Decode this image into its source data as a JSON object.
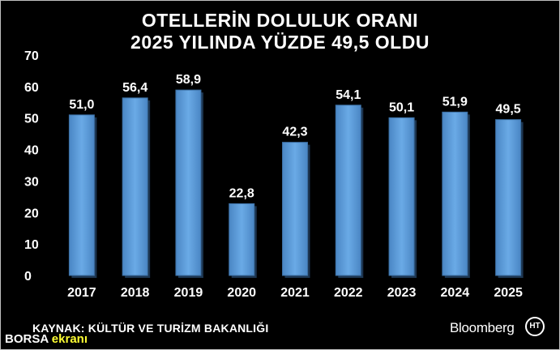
{
  "title_line1": "OTELLERİN DOLULUK ORANI",
  "title_line2": "2025 YILINDA YÜZDE 49,5 OLDU",
  "source": "KAYNAK: KÜLTÜR VE TURİZM BAKANLIĞI",
  "brand": "Bloomberg",
  "brand_logo": "HT",
  "watermark_part1": "BORSA",
  "watermark_part2": "ekranı",
  "colors": {
    "bar": "#5b9bd5",
    "background": "#000000",
    "text": "#ffffff",
    "watermark_accent": "#ffff33"
  },
  "chart_data": {
    "type": "bar",
    "title": "OTELLERİN DOLULUK ORANI 2025 YILINDA YÜZDE 49,5 OLDU",
    "categories": [
      "2017",
      "2018",
      "2019",
      "2020",
      "2021",
      "2022",
      "2023",
      "2024",
      "2025"
    ],
    "values": [
      51.0,
      56.4,
      58.9,
      22.8,
      42.3,
      54.1,
      50.1,
      51.9,
      49.5
    ],
    "value_labels": [
      "51,0",
      "56,4",
      "58,9",
      "22,8",
      "42,3",
      "54,1",
      "50,1",
      "51,9",
      "49,5"
    ],
    "ylim": [
      0,
      70
    ],
    "yticks": [
      0,
      10,
      20,
      30,
      40,
      50,
      60,
      70
    ],
    "grid": false,
    "legend": "none"
  }
}
